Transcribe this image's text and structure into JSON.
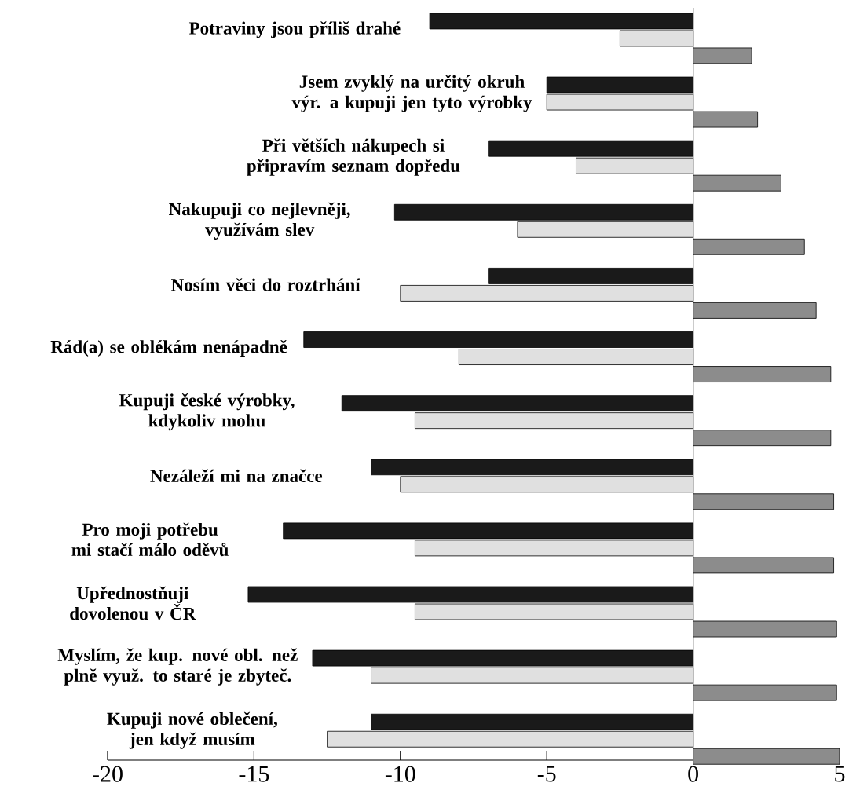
{
  "chart_data": {
    "type": "bar",
    "orientation": "horizontal",
    "categories": [
      "Potraviny jsou příliš drahé",
      "Jsem zvyklý na určitý okruh výr. a kupuji jen tyto výrobky",
      "Při větších nákupech si připravím seznam dopředu",
      "Nakupuji co nejlevněji, využívám slev",
      "Nosím věci do roztrhání",
      "Rád(a) se oblékám nenápadně",
      "Kupuji české výrobky, kdykoliv mohu",
      "Nezáleží mi na značce",
      "Pro moji potřebu mi stačí málo oděvů",
      "Upřednostňuji dovolenou v ČR",
      "Myslím, že kup. nové obl. než plně využ. to staré je zbyteč.",
      "Kupuji nové oblečení, jen když musím"
    ],
    "series": [
      {
        "color": "#1a1a1a",
        "values": [
          -9.0,
          -5.0,
          -7.0,
          -10.2,
          -7.0,
          -13.3,
          -12.0,
          -11.0,
          -14.0,
          -15.2,
          -13.0,
          -11.0
        ]
      },
      {
        "color": "#e0e0e0",
        "values": [
          -2.5,
          -5.0,
          -4.0,
          -6.0,
          -10.0,
          -8.0,
          -9.5,
          -10.0,
          -9.5,
          -9.5,
          -11.0,
          -12.5
        ]
      },
      {
        "color": "#8c8c8c",
        "values": [
          2.0,
          2.2,
          3.0,
          3.8,
          4.2,
          4.7,
          4.7,
          4.8,
          4.8,
          4.9,
          4.9,
          5.0
        ]
      }
    ],
    "xlim": [
      -20,
      5
    ],
    "xticks": [
      -20,
      -15,
      -10,
      -5,
      0,
      5
    ]
  }
}
